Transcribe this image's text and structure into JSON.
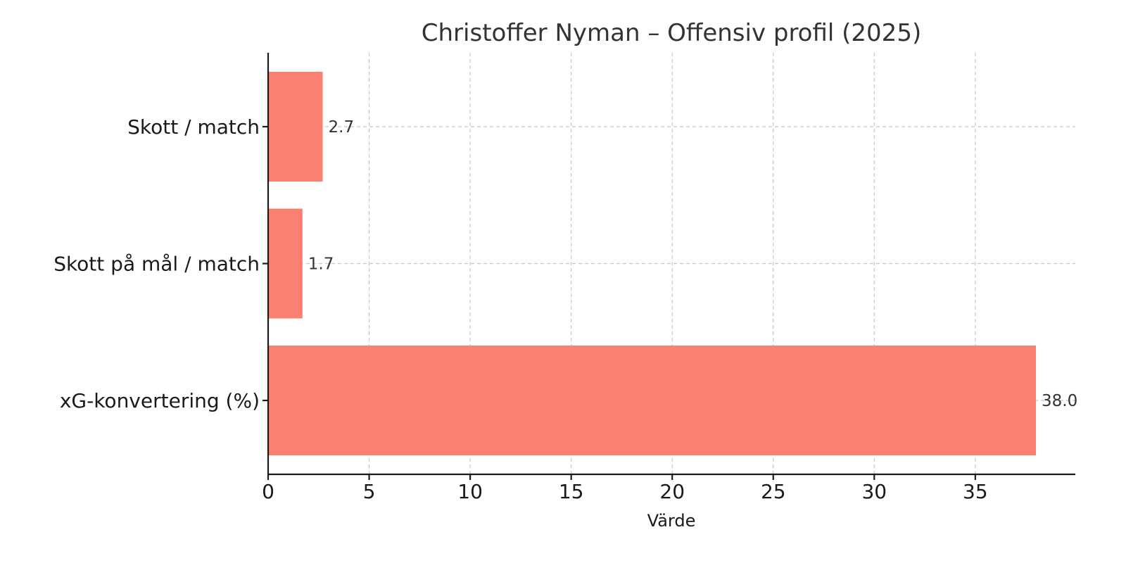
{
  "chart_data": {
    "type": "bar",
    "orientation": "horizontal",
    "title": "Christoffer Nyman – Offensiv profil (2025)",
    "xlabel": "Värde",
    "ylabel": "",
    "categories": [
      "Skott / match",
      "Skott på mål / match",
      "xG-konvertering (%)"
    ],
    "values": [
      2.7,
      1.7,
      38.0
    ],
    "value_labels": [
      "2.7",
      "1.7",
      "38.0"
    ],
    "xlim": [
      0,
      40
    ],
    "xticks": [
      0,
      5,
      10,
      15,
      20,
      25,
      30,
      35
    ],
    "xtick_labels": [
      "0",
      "5",
      "10",
      "15",
      "20",
      "25",
      "30",
      "35"
    ],
    "grid": true,
    "bar_color": "#fa8072",
    "legend": "none"
  }
}
